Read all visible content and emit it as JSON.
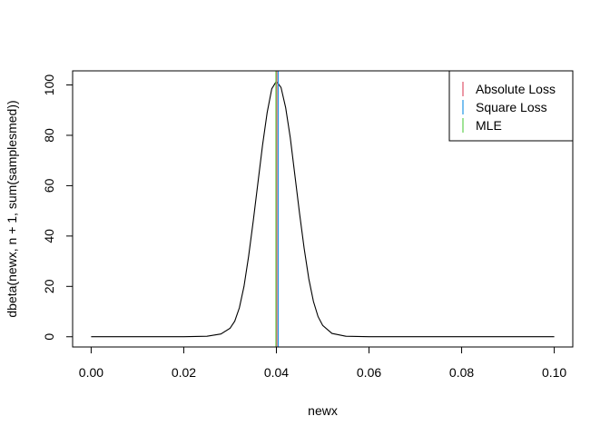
{
  "chart_data": {
    "type": "line",
    "title": "",
    "xlabel": "newx",
    "ylabel": "dbeta(newx, n + 1, sum(samplesmed))",
    "xlim": [
      -0.004,
      0.104
    ],
    "ylim": [
      -4.06,
      105.6
    ],
    "x_ticks": [
      0.0,
      0.02,
      0.04,
      0.06,
      0.08,
      0.1
    ],
    "x_tick_labels": [
      "0.00",
      "0.02",
      "0.04",
      "0.06",
      "0.08",
      "0.10"
    ],
    "y_ticks": [
      0,
      20,
      40,
      60,
      80,
      100
    ],
    "y_tick_labels": [
      "0",
      "20",
      "40",
      "60",
      "80",
      "100"
    ],
    "grid": false,
    "legend_position": "top-right",
    "density_curve": {
      "x": [
        0.0,
        0.01,
        0.02,
        0.025,
        0.028,
        0.03,
        0.031,
        0.032,
        0.033,
        0.034,
        0.035,
        0.036,
        0.037,
        0.038,
        0.039,
        0.04,
        0.041,
        0.042,
        0.043,
        0.044,
        0.045,
        0.046,
        0.047,
        0.048,
        0.049,
        0.05,
        0.052,
        0.055,
        0.06,
        0.07,
        0.08,
        0.1
      ],
      "y": [
        0,
        0,
        0,
        0.2,
        1.1,
        3.4,
        6.2,
        11.5,
        20,
        32,
        46,
        61,
        76,
        89,
        98.5,
        101.5,
        99,
        91,
        79,
        64,
        49,
        35,
        23,
        14,
        8,
        4.5,
        1.3,
        0.2,
        0,
        0,
        0,
        0
      ],
      "color": "#000000"
    },
    "series": [
      {
        "name": "Absolute Loss",
        "x": 0.0401,
        "color": "#DF536B"
      },
      {
        "name": "Square Loss",
        "x": 0.0404,
        "color": "#2297E6"
      },
      {
        "name": "MLE",
        "x": 0.0399,
        "color": "#61D04F"
      }
    ]
  }
}
